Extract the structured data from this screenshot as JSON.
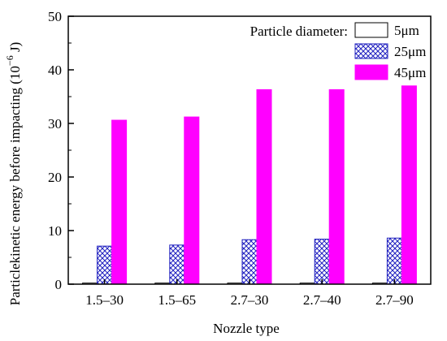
{
  "chart_data": {
    "type": "bar",
    "xlabel": "Nozzle type",
    "ylabel": "Particlekinetic energy before impacting (10",
    "ylabel_exp": "−6",
    "ylabel_unit": " J)",
    "categories": [
      "1.5–30",
      "1.5–65",
      "2.7–30",
      "2.7–40",
      "2.7–90"
    ],
    "series": [
      {
        "name": "5μm",
        "values": [
          0.2,
          0.2,
          0.2,
          0.2,
          0.2
        ],
        "fill": "#ffffff",
        "stroke": "#000000",
        "pattern": "none"
      },
      {
        "name": "25μm",
        "values": [
          7.1,
          7.3,
          8.3,
          8.4,
          8.6
        ],
        "fill": "#ffffff",
        "stroke": "#1f1fbf",
        "pattern": "crosshatch"
      },
      {
        "name": "45μm",
        "values": [
          30.6,
          31.2,
          36.3,
          36.3,
          37.0
        ],
        "fill": "#ff00ff",
        "stroke": "#ff00ff",
        "pattern": "none"
      }
    ],
    "ylim": [
      0,
      50
    ],
    "yticks": [
      0,
      10,
      20,
      30,
      40,
      50
    ],
    "legend": {
      "title": "Particle diameter:",
      "position": "top-right"
    },
    "grid": false
  }
}
